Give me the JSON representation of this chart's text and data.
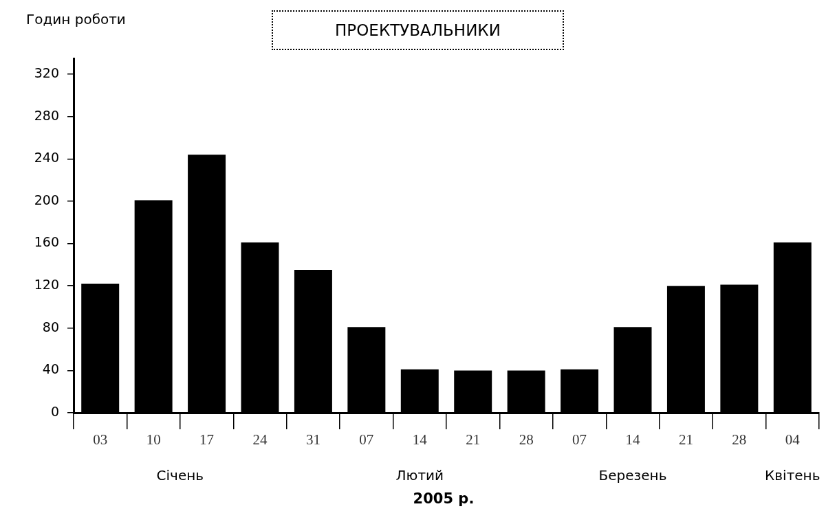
{
  "chart_data": {
    "type": "bar",
    "title": "ПРОЕКТУВАЛЬНИКИ",
    "ylabel": "Годин роботи",
    "xlabel": "2005 р.",
    "categories": [
      "03",
      "10",
      "17",
      "24",
      "31",
      "07",
      "14",
      "21",
      "28",
      "07",
      "14",
      "21",
      "28",
      "04"
    ],
    "values": [
      122,
      201,
      244,
      161,
      135,
      81,
      41,
      40,
      40,
      41,
      81,
      120,
      121,
      161
    ],
    "color": "#000000",
    "ylim": [
      0,
      335
    ],
    "yticks": [
      0,
      40,
      80,
      120,
      160,
      200,
      240,
      280,
      320
    ],
    "annotations": [
      "Січень",
      "Лютий",
      "Березень",
      "Квітень"
    ]
  }
}
